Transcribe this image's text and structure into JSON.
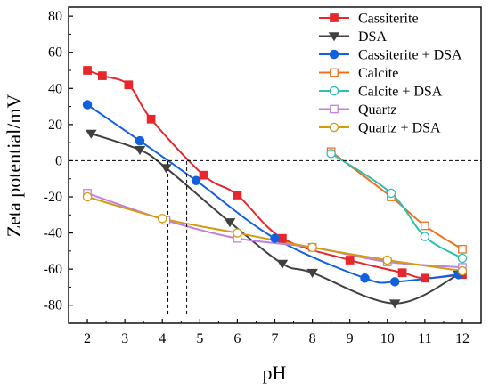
{
  "chart_data": {
    "type": "line",
    "title": "",
    "xlabel": "pH",
    "ylabel": "Zeta potential/mV",
    "xlim": [
      1.5,
      12.5
    ],
    "ylim": [
      -90,
      85
    ],
    "x_ticks": [
      2,
      3,
      4,
      5,
      6,
      7,
      8,
      9,
      10,
      11,
      12
    ],
    "y_ticks": [
      -80,
      -60,
      -40,
      -20,
      0,
      20,
      40,
      60,
      80
    ],
    "grid": false,
    "legend_position": "top-right",
    "reference_lines": [
      {
        "orientation": "horizontal",
        "y": 0,
        "style": "dashed"
      },
      {
        "orientation": "vertical",
        "x": 4.15,
        "y_from": -85,
        "y_to": 0,
        "style": "dashed"
      },
      {
        "orientation": "vertical",
        "x": 4.65,
        "y_from": -85,
        "y_to": 0,
        "style": "dashed"
      }
    ],
    "series": [
      {
        "name": "Cassiterite",
        "color": "#e8262b",
        "marker": "filled-square",
        "x": [
          2,
          2.4,
          3.1,
          3.7,
          5.1,
          6.0,
          7.2,
          9.0,
          10.4,
          11.0,
          12.0
        ],
        "y": [
          50,
          47,
          42,
          23,
          -8,
          -19,
          -43,
          -55,
          -62,
          -65,
          -63
        ]
      },
      {
        "name": "DSA",
        "color": "#404040",
        "marker": "filled-triangle-down",
        "x": [
          2.1,
          3.4,
          4.1,
          5.8,
          7.2,
          8.0,
          10.2,
          11.9
        ],
        "y": [
          15,
          6,
          -4,
          -34,
          -57,
          -62,
          -79,
          -63
        ]
      },
      {
        "name": "Cassiterite + DSA",
        "color": "#1060e0",
        "marker": "filled-circle",
        "x": [
          2,
          3.4,
          4.9,
          7.0,
          9.4,
          10.2,
          11.9
        ],
        "y": [
          31,
          11,
          -11,
          -43,
          -65,
          -67,
          -63
        ]
      },
      {
        "name": "Calcite",
        "color": "#f07020",
        "marker": "open-square",
        "x": [
          8.5,
          10.1,
          11.0,
          12.0
        ],
        "y": [
          5,
          -20,
          -36,
          -49
        ]
      },
      {
        "name": "Calcite + DSA",
        "color": "#2cc0b0",
        "marker": "open-circle",
        "x": [
          8.5,
          10.1,
          11.0,
          12.0
        ],
        "y": [
          4,
          -18,
          -42,
          -54
        ]
      },
      {
        "name": "Quartz",
        "color": "#c080e0",
        "marker": "open-square",
        "x": [
          2,
          4.1,
          6.0,
          8.0,
          10.0,
          12.0
        ],
        "y": [
          -18,
          -33,
          -43,
          -48,
          -56,
          -59
        ]
      },
      {
        "name": "Quartz + DSA",
        "color": "#d49a10",
        "marker": "open-circle",
        "x": [
          2,
          4.0,
          6.0,
          8.0,
          10.0,
          12.0
        ],
        "y": [
          -20,
          -32,
          -40,
          -48,
          -55,
          -61
        ]
      }
    ]
  }
}
